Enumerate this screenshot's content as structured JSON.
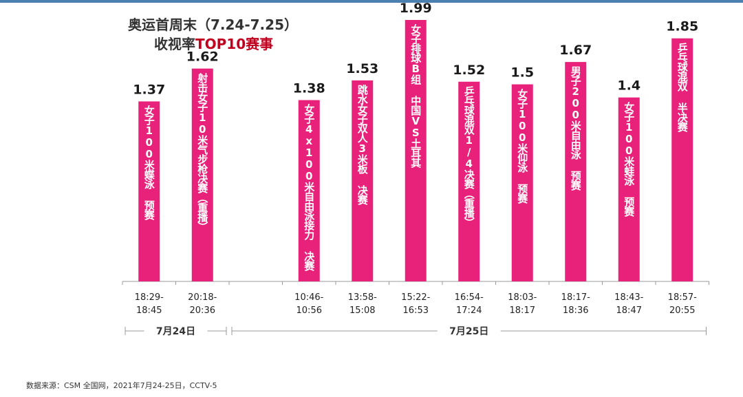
{
  "title": {
    "line1": "奥运首周末（7.24-7.25）",
    "line2_prefix": "收视率",
    "line2_highlight": "TOP10赛事"
  },
  "source": "数据来源：CSM 全国网，2021年7月24-25日，CCTV-5",
  "colors": {
    "bar": "#e8217a",
    "top_rule": "#4a7fb0",
    "highlight": "#c0001e",
    "axis": "#999999"
  },
  "chart_data": {
    "type": "bar",
    "title": "奥运首周末（7.24-7.25） 收视率TOP10赛事",
    "categories": [
      "18:29-18:45",
      "20:18-20:36",
      "",
      "10:46-10:56",
      "13:58-15:08",
      "15:22-16:53",
      "16:54-17:24",
      "18:03-18:17",
      "18:17-18:36",
      "18:43-18:47",
      "18:57-20:55"
    ],
    "tick_lines": [
      [
        "18:29-",
        "18:45"
      ],
      [
        "20:18-",
        "20:36"
      ],
      [
        "",
        ""
      ],
      [
        "10:46-",
        "10:56"
      ],
      [
        "13:58-",
        "15:08"
      ],
      [
        "15:22-",
        "16:53"
      ],
      [
        "16:54-",
        "17:24"
      ],
      [
        "18:03-",
        "18:17"
      ],
      [
        "18:17-",
        "18:36"
      ],
      [
        "18:43-",
        "18:47"
      ],
      [
        "18:57-",
        "20:55"
      ]
    ],
    "values": [
      1.37,
      1.62,
      null,
      1.38,
      1.53,
      1.99,
      1.52,
      1.5,
      1.67,
      1.4,
      1.85
    ],
    "value_labels": [
      "1.37",
      "1.62",
      "",
      "1.38",
      "1.53",
      "1.99",
      "1.52",
      "1.5",
      "1.67",
      "1.4",
      "1.85"
    ],
    "bar_labels": [
      "女子100米蝶泳 预赛",
      "射击女子10米气步枪决赛（重播）",
      "",
      "女子4x100米自由泳接力 决赛",
      "跳水女子双人3米板 决赛",
      "女子排球B组 中国VS土耳其",
      "乒乓球混双1/4决赛（重播）",
      "女子100米仰泳 预赛",
      "男子200米自由泳 预赛",
      "女子100米蛙泳 预赛",
      "乒乓球混双 半决赛"
    ],
    "groups": [
      {
        "label": "7月24日",
        "from": 0,
        "to": 1
      },
      {
        "label": "7月25日",
        "from": 2,
        "to": 10
      }
    ],
    "ylim": [
      0,
      2.1
    ],
    "grid": false,
    "legend": "none"
  }
}
